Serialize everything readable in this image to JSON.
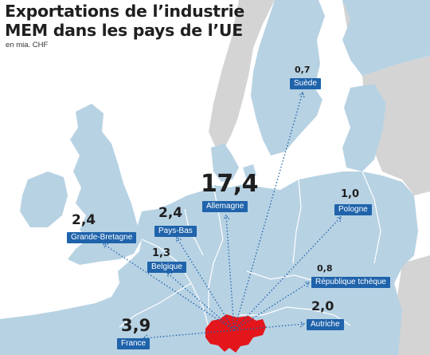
{
  "title": {
    "line1": "Exportations de l’industrie",
    "line2": "MEM dans les pays de l’UE"
  },
  "unit": "en mia. CHF",
  "colors": {
    "land_eu": "#b7d2e3",
    "land_other": "#d4d4d4",
    "sea": "#ffffff",
    "label_bg": "#1f63ab",
    "switzerland": "#e3161b",
    "arrow": "#1f63ab"
  },
  "countries": [
    {
      "id": "allemagne",
      "name": "Allemagne",
      "value": "17,4"
    },
    {
      "id": "france",
      "name": "France",
      "value": "3,9"
    },
    {
      "id": "grande-bretagne",
      "name": "Grande-Bretagne",
      "value": "2,4"
    },
    {
      "id": "pays-bas",
      "name": "Pays-Bas",
      "value": "2,4"
    },
    {
      "id": "autriche",
      "name": "Autriche",
      "value": "2,0"
    },
    {
      "id": "belgique",
      "name": "Belgique",
      "value": "1,3"
    },
    {
      "id": "pologne",
      "name": "Pologne",
      "value": "1,0"
    },
    {
      "id": "republique-tcheque",
      "name": "République tchèque",
      "value": "0,8"
    },
    {
      "id": "suede",
      "name": "Suède",
      "value": "0,7"
    }
  ]
}
